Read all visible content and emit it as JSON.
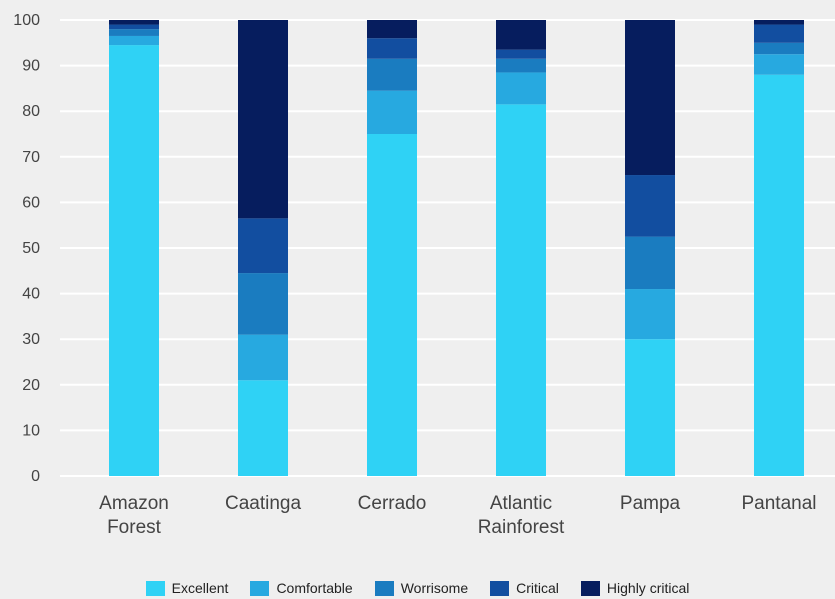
{
  "chart_data": {
    "type": "bar",
    "stacked": true,
    "categories": [
      "Amazon\nForest",
      "Caatinga",
      "Cerrado",
      "Atlantic\nRainforest",
      "Pampa",
      "Pantanal"
    ],
    "series": [
      {
        "name": "Excellent",
        "color": "#2fd2f5",
        "values": [
          94.5,
          21,
          75,
          81.5,
          30,
          88
        ]
      },
      {
        "name": "Comfortable",
        "color": "#27a9e0",
        "values": [
          2,
          10,
          9.5,
          7,
          11,
          4.5
        ]
      },
      {
        "name": "Worrisome",
        "color": "#1a7cc0",
        "values": [
          1.5,
          13.5,
          7,
          3,
          11.5,
          2.5
        ]
      },
      {
        "name": "Critical",
        "color": "#124ea0",
        "values": [
          1,
          12,
          4.5,
          2,
          13.5,
          4
        ]
      },
      {
        "name": "Highly critical",
        "color": "#061d5e",
        "values": [
          1,
          43.5,
          4,
          6.5,
          34,
          1
        ]
      }
    ],
    "title": "",
    "xlabel": "",
    "ylabel": "",
    "ylim": [
      0,
      100
    ],
    "yticks": [
      0,
      10,
      20,
      30,
      40,
      50,
      60,
      70,
      80,
      90,
      100
    ],
    "grid": true,
    "legend_position": "bottom"
  }
}
